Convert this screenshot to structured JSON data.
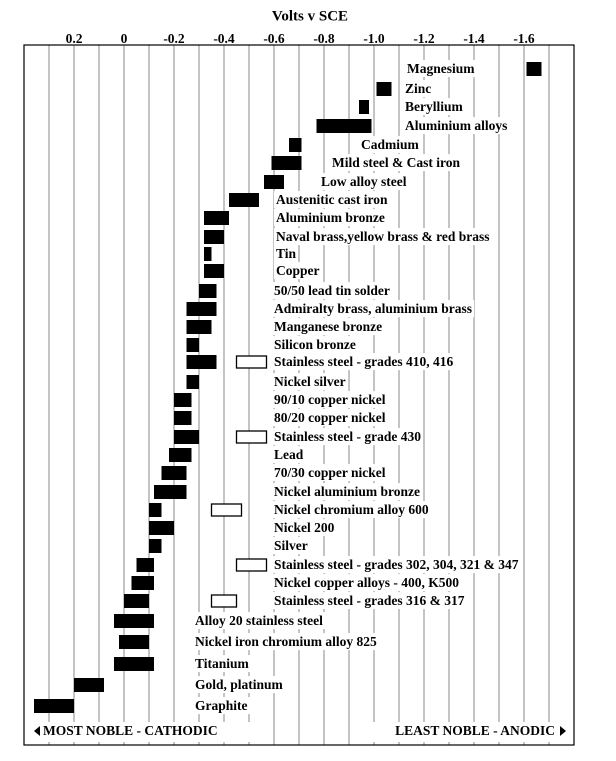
{
  "chart_data": {
    "type": "range_bar",
    "title": "Volts v SCE",
    "xlim": [
      0.4,
      -1.8
    ],
    "xticks": [
      0.2,
      0,
      -0.2,
      -0.4,
      -0.6,
      -0.8,
      {
        "value": -1,
        "label": "-1.0"
      },
      -1.2,
      -1.4,
      -1.6
    ],
    "xminor": [
      0.3,
      0.1,
      -0.1,
      -0.3,
      -0.5,
      -0.7,
      -0.9,
      -1.1,
      -1.3,
      -1.5,
      -1.7
    ],
    "grid": true,
    "color": "#000000",
    "secondary_color": "#ffffff",
    "categories": [
      "Magnesium",
      "Zinc",
      "Beryllium",
      "Aluminium alloys",
      "Cadmium",
      "Mild steel & Cast iron",
      "Low alloy steel",
      "Austenitic cast iron",
      "Aluminium bronze",
      "Naval brass,yellow brass & red brass",
      "Tin",
      "Copper",
      "50/50 lead tin solder",
      "Admiralty brass, aluminium brass",
      "Manganese bronze",
      "Silicon bronze",
      "Stainless steel  - grades 410, 416",
      "Nickel silver",
      "90/10 copper nickel",
      "80/20 copper nickel",
      "Stainless steel  - grade 430",
      "Lead",
      "70/30 copper nickel",
      "Nickel aluminium bronze",
      "Nickel chromium alloy 600",
      "Nickel 200",
      "Silver",
      "Stainless steel - grades 302, 304, 321 & 347",
      "Nickel copper  alloys - 400, K500",
      "Stainless steel - grades 316 & 317",
      "Alloy 20 stainless steel",
      "Nickel iron chromium alloy 825",
      "Titanium",
      "Gold, platinum",
      "Graphite"
    ],
    "values": [
      [
        -1.61,
        -1.67
      ],
      [
        -1.01,
        -1.07
      ],
      [
        -0.94,
        -0.98
      ],
      [
        -0.77,
        -0.99
      ],
      [
        -0.66,
        -0.71
      ],
      [
        -0.59,
        -0.71
      ],
      [
        -0.56,
        -0.64
      ],
      [
        -0.42,
        -0.54
      ],
      [
        -0.32,
        -0.42
      ],
      [
        -0.32,
        -0.4
      ],
      [
        -0.32,
        -0.35
      ],
      [
        -0.32,
        -0.4
      ],
      [
        -0.3,
        -0.37
      ],
      [
        -0.25,
        -0.37
      ],
      [
        -0.25,
        -0.35
      ],
      [
        -0.25,
        -0.3
      ],
      [
        -0.25,
        -0.37
      ],
      [
        -0.25,
        -0.3
      ],
      [
        -0.2,
        -0.27
      ],
      [
        -0.2,
        -0.27
      ],
      [
        -0.2,
        -0.3
      ],
      [
        -0.18,
        -0.27
      ],
      [
        -0.15,
        -0.25
      ],
      [
        -0.12,
        -0.25
      ],
      [
        -0.1,
        -0.15
      ],
      [
        -0.1,
        -0.2
      ],
      [
        -0.1,
        -0.15
      ],
      [
        -0.05,
        -0.12
      ],
      [
        -0.03,
        -0.12
      ],
      [
        0,
        -0.1
      ],
      [
        0.04,
        -0.12
      ],
      [
        0.02,
        -0.1
      ],
      [
        0.04,
        -0.12
      ],
      [
        0.2,
        0.08
      ],
      [
        0.36,
        0.2
      ]
    ],
    "secondary_values": [
      null,
      null,
      null,
      null,
      null,
      null,
      null,
      null,
      null,
      null,
      null,
      null,
      null,
      null,
      null,
      null,
      [
        -0.45,
        -0.57
      ],
      null,
      null,
      null,
      [
        -0.45,
        -0.57
      ],
      null,
      null,
      null,
      [
        -0.35,
        -0.47
      ],
      null,
      null,
      [
        -0.45,
        -0.57
      ],
      null,
      [
        -0.35,
        -0.45
      ],
      null,
      null,
      null,
      null,
      null
    ],
    "left_note": "MOST NOBLE - CATHODIC",
    "right_note": "LEAST NOBLE - ANODIC"
  }
}
